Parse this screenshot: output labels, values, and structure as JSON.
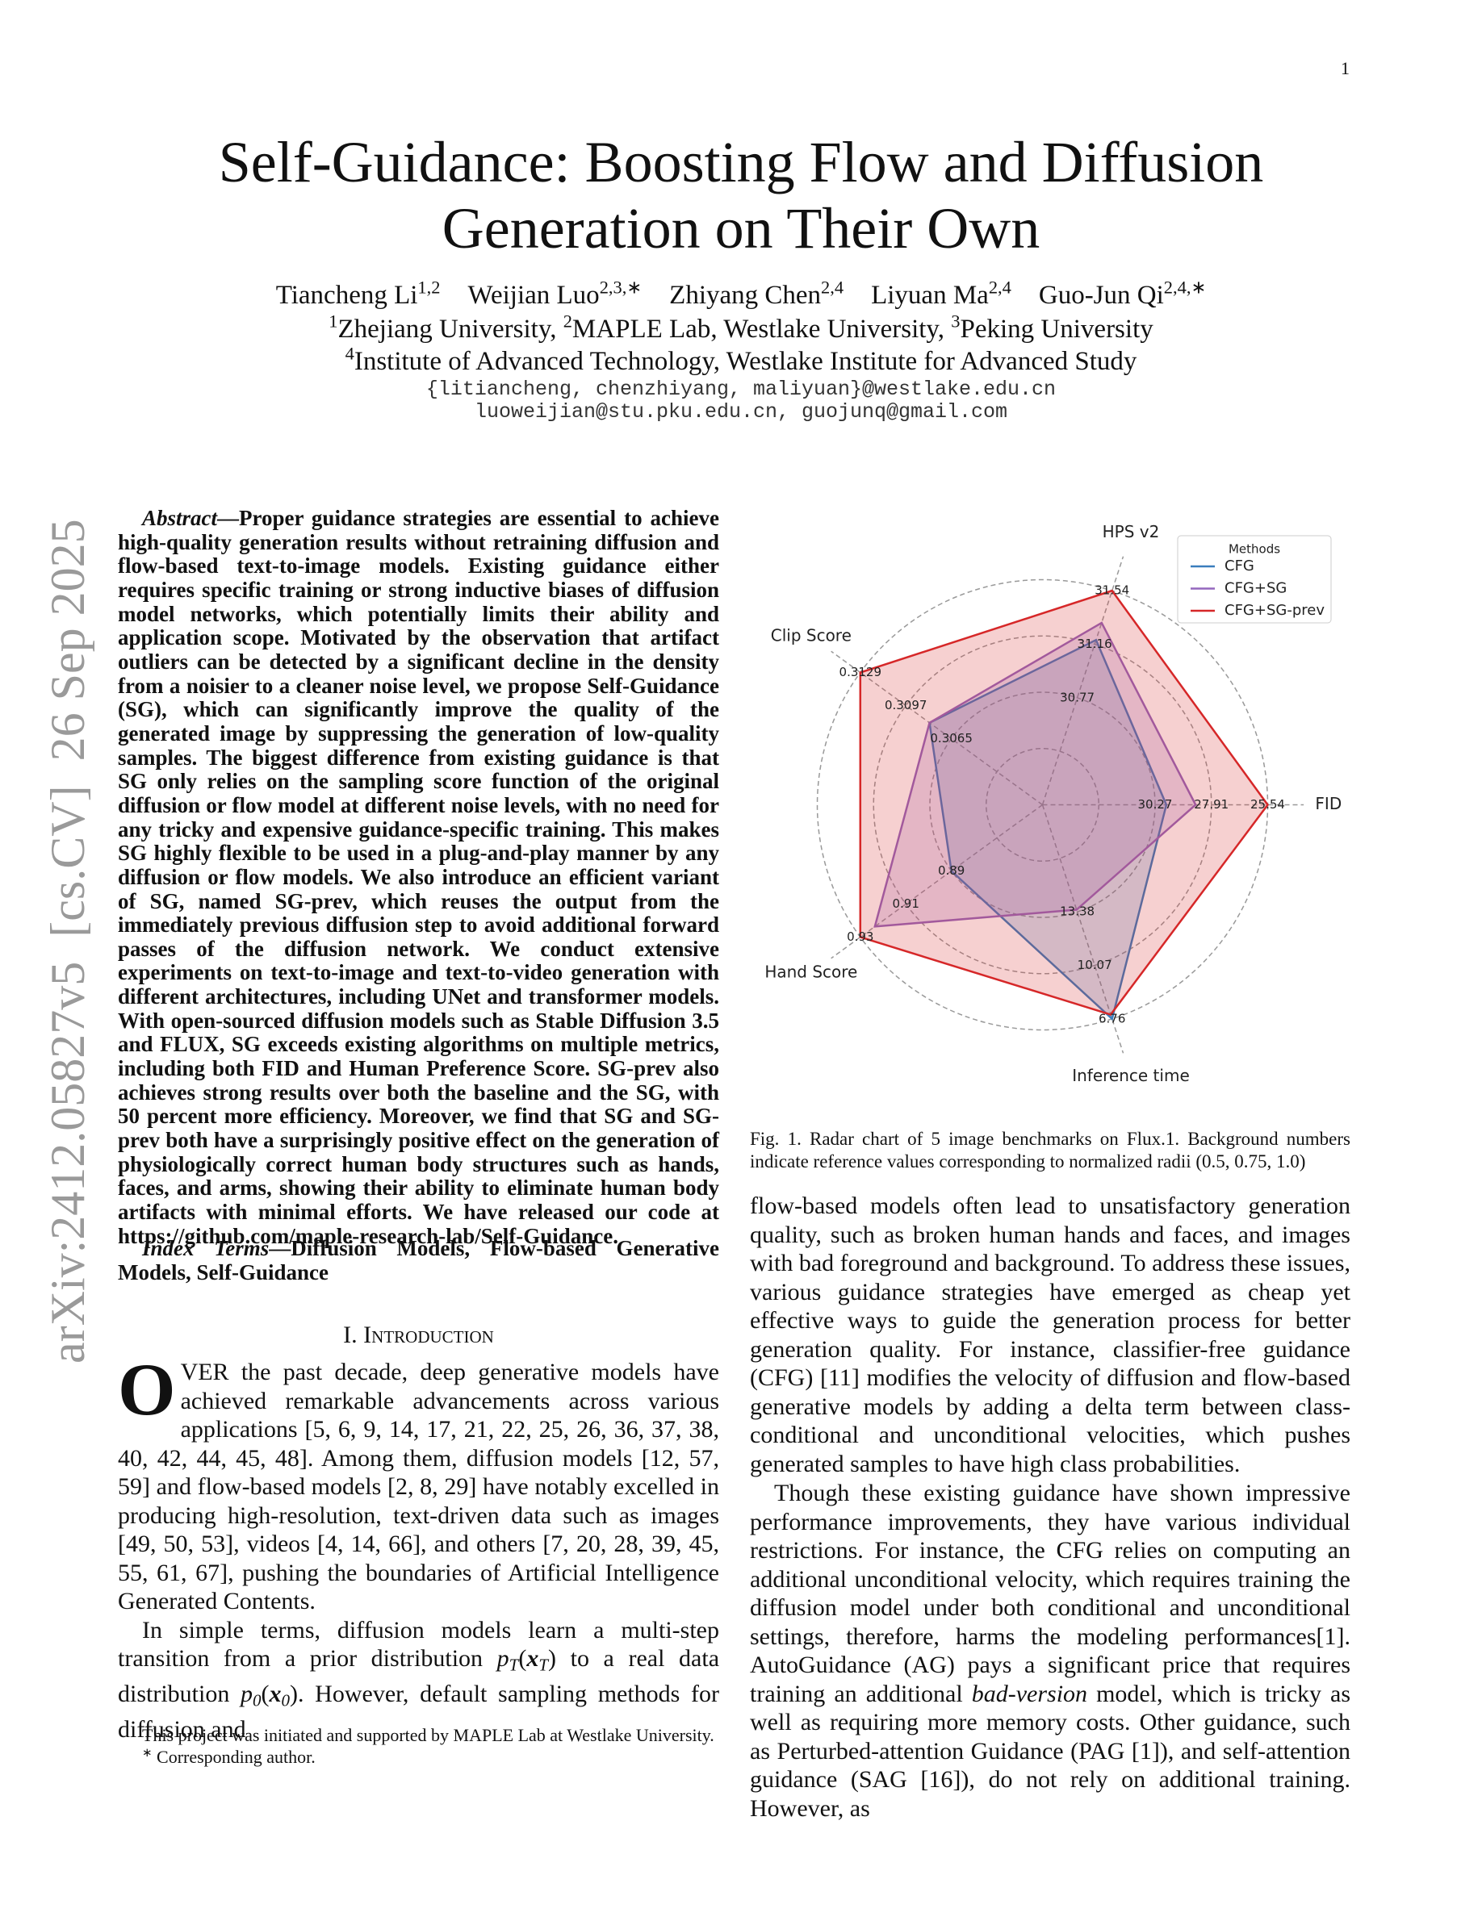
{
  "page_number": "1",
  "arxiv_stamp": "arXiv:2412.05827v5  [cs.CV]  26 Sep 2025",
  "title": "Self-Guidance: Boosting Flow and Diffusion Generation on Their Own",
  "authors": [
    {
      "name": "Tiancheng Li",
      "sup": "1,2"
    },
    {
      "name": "Weijian Luo",
      "sup": "2,3,∗"
    },
    {
      "name": "Zhiyang Chen",
      "sup": "2,4"
    },
    {
      "name": "Liyuan Ma",
      "sup": "2,4"
    },
    {
      "name": "Guo-Jun Qi",
      "sup": "2,4,∗"
    }
  ],
  "affiliations": [
    [
      {
        "sup": "1",
        "text": "Zhejiang University, "
      },
      {
        "sup": "2",
        "text": "MAPLE Lab, Westlake University, "
      },
      {
        "sup": "3",
        "text": "Peking University"
      }
    ],
    [
      {
        "sup": "4",
        "text": "Institute of Advanced Technology, Westlake Institute for Advanced Study"
      }
    ]
  ],
  "emails": [
    "{litiancheng, chenzhiyang, maliyuan}@westlake.edu.cn",
    "luoweijian@stu.pku.edu.cn, guojunq@gmail.com"
  ],
  "abstract": {
    "label": "Abstract",
    "text": "—Proper guidance strategies are essential to achieve high-quality generation results without retraining diffusion and flow-based text-to-image models. Existing guidance either requires specific training or strong inductive biases of diffusion model networks, which potentially limits their ability and application scope. Motivated by the observation that artifact outliers can be detected by a significant decline in the density from a noisier to a cleaner noise level, we propose Self-Guidance (SG), which can significantly improve the quality of the generated image by suppressing the generation of low-quality samples. The biggest difference from existing guidance is that SG only relies on the sampling score function of the original diffusion or flow model at different noise levels, with no need for any tricky and expensive guidance-specific training. This makes SG highly flexible to be used in a plug-and-play manner by any diffusion or flow models. We also introduce an efficient variant of SG, named SG-prev, which reuses the output from the immediately previous diffusion step to avoid additional forward passes of the diffusion network. We conduct extensive experiments on text-to-image and text-to-video generation with different architectures, including UNet and transformer models. With open-sourced diffusion models such as Stable Diffusion 3.5 and FLUX, SG exceeds existing algorithms on multiple metrics, including both FID and Human Preference Score. SG-prev also achieves strong results over both the baseline and the SG, with 50 percent more efficiency. Moreover, we find that SG and SG-prev both have a surprisingly positive effect on the generation of physiologically correct human body structures such as hands, faces, and arms, showing their ability to eliminate human body artifacts with minimal efforts. We have released our code at https://github.com/maple-research-lab/Self-Guidance."
  },
  "index_terms": {
    "label": "Index Terms",
    "text": "—Diffusion Models, Flow-based Generative Models, Self-Guidance"
  },
  "section_heading": "I. Introduction",
  "intro_p1": {
    "dropcap": "O",
    "text": "VER the past decade, deep generative models have achieved remarkable advancements across various applications [5, 6, 9, 14, 17, 21, 22, 25, 26, 36, 37, 38, 40, 42, 44, 45, 48]. Among them, diffusion models [12, 57, 59] and flow-based models [2, 8, 29] have notably excelled in producing high-resolution, text-driven data such as images [49, 50, 53], videos [4, 14, 66], and others [7, 20, 28, 39, 45, 55, 61, 67], pushing the boundaries of Artificial Intelligence Generated Contents."
  },
  "intro_p2": {
    "runs": [
      {
        "text": "In simple terms, diffusion models learn a multi-step transition from a prior distribution ",
        "style": "n"
      },
      {
        "text": "p",
        "style": "it"
      },
      {
        "text": "T",
        "style": "sub"
      },
      {
        "text": "(",
        "style": "n"
      },
      {
        "text": "x",
        "style": "bit"
      },
      {
        "text": "T",
        "style": "sub"
      },
      {
        "text": ")",
        "style": "n"
      },
      {
        "text": " to a real data distribution ",
        "style": "n"
      },
      {
        "text": "p",
        "style": "it"
      },
      {
        "text": "0",
        "style": "sub"
      },
      {
        "text": "(",
        "style": "n"
      },
      {
        "text": "x",
        "style": "bit"
      },
      {
        "text": "0",
        "style": "sub"
      },
      {
        "text": ")",
        "style": "n"
      },
      {
        "text": ". However, default sampling methods for diffusion and",
        "style": "n"
      }
    ]
  },
  "footnotes": [
    {
      "sup": "",
      "text": "This project was initiated and supported by MAPLE Lab at Westlake University."
    },
    {
      "sup": "∗",
      "text": " Corresponding author."
    }
  ],
  "figure_caption": "Fig. 1.  Radar chart of 5 image benchmarks on Flux.1. Background numbers indicate reference values corresponding to normalized radii (0.5, 0.75, 1.0)",
  "right_p1": "flow-based models often lead to unsatisfactory generation quality, such as broken human hands and faces, and images with bad foreground and background. To address these issues, various guidance strategies have emerged as cheap yet effective ways to guide the generation process for better generation quality. For instance, classifier-free guidance (CFG) [11] modifies the velocity of diffusion and flow-based generative models by adding a delta term between class-conditional and unconditional velocities, which pushes generated samples to have high class probabilities.",
  "right_p2": {
    "runs": [
      {
        "text": "Though these existing guidance have shown impressive performance improvements, they have various individual restrictions. For instance, the CFG relies on computing an additional unconditional velocity, which requires training the diffusion model under both conditional and unconditional settings, therefore, harms the modeling performances[1]. AutoGuidance (AG) pays a significant price that requires training an additional ",
        "style": "n"
      },
      {
        "text": "bad-version",
        "style": "it"
      },
      {
        "text": " model, which is tricky as well as requiring more memory costs. Other guidance, such as Perturbed-attention Guidance (PAG [1]), and self-attention guidance (SAG [16]), do not rely on additional training. However, as",
        "style": "n"
      }
    ]
  },
  "chart_data": {
    "type": "radar",
    "rlim": [
      0,
      1
    ],
    "rgrid": [
      0.25,
      0.5,
      0.75,
      1
    ],
    "axes": [
      {
        "name": "HPS v2",
        "ticks": [
          {
            "value": 0.5,
            "label": "30.77"
          },
          {
            "value": 0.75,
            "label": "31.16"
          },
          {
            "value": 1,
            "label": "31.54"
          }
        ]
      },
      {
        "name": "FID",
        "ticks": [
          {
            "value": 0.5,
            "label": "30.27"
          },
          {
            "value": 0.75,
            "label": "27.91"
          },
          {
            "value": 1,
            "label": "25.54"
          }
        ]
      },
      {
        "name": "Inference time",
        "ticks": [
          {
            "value": 0.5,
            "label": "13.38"
          },
          {
            "value": 0.75,
            "label": "10.07"
          },
          {
            "value": 1,
            "label": "6.76"
          }
        ]
      },
      {
        "name": "Hand Score",
        "ticks": [
          {
            "value": 0.5,
            "label": "0.89"
          },
          {
            "value": 0.75,
            "label": "0.91"
          },
          {
            "value": 1,
            "label": "0.93"
          }
        ]
      },
      {
        "name": "Clip Score",
        "ticks": [
          {
            "value": 0.5,
            "label": "0.3065"
          },
          {
            "value": 0.75,
            "label": "0.3097"
          },
          {
            "value": 1,
            "label": "0.3129"
          }
        ]
      }
    ],
    "legend_title": "Methods",
    "legend": "upper right",
    "series": [
      {
        "name": "CFG",
        "color": "#3a7dbd",
        "values": [
          0.77,
          0.55,
          1.0,
          0.5,
          0.62
        ]
      },
      {
        "name": "CFG+SG",
        "color": "#9467bd",
        "values": [
          0.85,
          0.68,
          0.49,
          0.92,
          0.62
        ]
      },
      {
        "name": "CFG+SG-prev",
        "color": "#d62728",
        "values": [
          1.0,
          1.0,
          0.98,
          1.0,
          1.0
        ]
      }
    ]
  }
}
